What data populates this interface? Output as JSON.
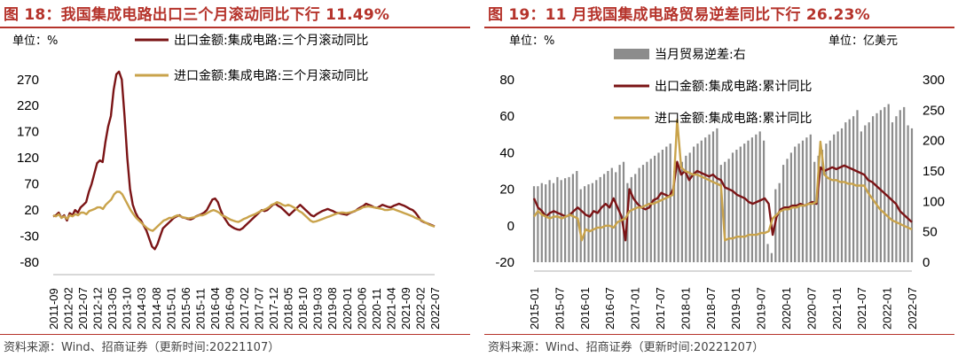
{
  "left": {
    "title": "图 18：我国集成电路出口三个月滚动同比下行 11.49%",
    "unit": "单位：%",
    "source": "资料来源：Wind、招商证券（更新时间:20221107）",
    "chart_data": {
      "type": "line",
      "x_ticks": [
        "2011-09",
        "2012-02",
        "2012-07",
        "2012-12",
        "2013-05",
        "2013-10",
        "2014-03",
        "2014-08",
        "2015-01",
        "2015-06",
        "2015-11",
        "2016-04",
        "2016-09",
        "2017-02",
        "2017-07",
        "2017-12",
        "2018-05",
        "2018-10",
        "2019-03",
        "2019-08",
        "2020-01",
        "2020-06",
        "2020-11",
        "2021-04",
        "2021-09",
        "2022-02",
        "2022-07"
      ],
      "ylim": [
        -80,
        290
      ],
      "y_ticks": [
        -80,
        -30,
        20,
        70,
        120,
        170,
        220,
        270
      ],
      "series": [
        {
          "name": "出口金额:集成电路:三个月滚动同比",
          "color": "#7b1416",
          "values": [
            8,
            10,
            15,
            5,
            10,
            0,
            14,
            10,
            20,
            15,
            25,
            30,
            35,
            55,
            70,
            90,
            110,
            115,
            112,
            150,
            180,
            200,
            250,
            280,
            285,
            270,
            200,
            120,
            60,
            30,
            15,
            5,
            0,
            -10,
            -20,
            -35,
            -50,
            -55,
            -45,
            -30,
            -15,
            -10,
            -5,
            0,
            5,
            8,
            10,
            6,
            5,
            3,
            2,
            4,
            8,
            10,
            12,
            15,
            20,
            30,
            40,
            42,
            35,
            20,
            8,
            0,
            -8,
            -12,
            -15,
            -17,
            -18,
            -15,
            -10,
            -5,
            0,
            5,
            10,
            15,
            20,
            18,
            20,
            25,
            30,
            32,
            28,
            25,
            20,
            15,
            10,
            15,
            20,
            25,
            30,
            25,
            20,
            15,
            10,
            8,
            12,
            15,
            18,
            20,
            22,
            20,
            18,
            15,
            14,
            13,
            12,
            11,
            14,
            16,
            18,
            22,
            25,
            28,
            32,
            30,
            28,
            25,
            24,
            27,
            30,
            28,
            26,
            25,
            28,
            30,
            32,
            30,
            28,
            25,
            22,
            20,
            15,
            8,
            0,
            -3,
            -5,
            -7,
            -9,
            -11.49
          ]
        },
        {
          "name": "进口金额:集成电路:三个月滚动同比",
          "color": "#c9a34b",
          "values": [
            10,
            8,
            12,
            5,
            8,
            3,
            10,
            8,
            12,
            10,
            15,
            15,
            12,
            18,
            20,
            22,
            25,
            25,
            22,
            30,
            35,
            40,
            50,
            55,
            55,
            50,
            40,
            30,
            20,
            12,
            5,
            0,
            -5,
            -10,
            -15,
            -18,
            -20,
            -15,
            -10,
            -5,
            0,
            2,
            5,
            5,
            8,
            10,
            8,
            6,
            5,
            4,
            5,
            6,
            8,
            10,
            10,
            12,
            15,
            18,
            20,
            18,
            15,
            10,
            8,
            5,
            2,
            0,
            -2,
            -3,
            0,
            3,
            5,
            8,
            10,
            12,
            15,
            18,
            20,
            22,
            25,
            30,
            32,
            35,
            33,
            30,
            28,
            30,
            28,
            25,
            22,
            18,
            15,
            10,
            5,
            0,
            -3,
            -2,
            0,
            2,
            4,
            6,
            8,
            10,
            12,
            14,
            15,
            15,
            14,
            15,
            16,
            18,
            20,
            22,
            25,
            26,
            27,
            26,
            25,
            24,
            23,
            22,
            20,
            20,
            21,
            22,
            20,
            18,
            16,
            14,
            12,
            10,
            8,
            5,
            3,
            1,
            -2,
            -5,
            -8,
            -10,
            -12
          ]
        }
      ]
    }
  },
  "right": {
    "title": "图 19：11 月我国集成电路贸易逆差同比下行 26.23%",
    "unit_left": "单位：%",
    "unit_right": "单位：亿美元",
    "source": "资料来源：Wind、招商证券（更新时间:20221207）",
    "chart_data": {
      "type": "bar+line",
      "x_ticks": [
        "2015-01",
        "2015-07",
        "2016-01",
        "2016-07",
        "2017-01",
        "2017-07",
        "2018-01",
        "2018-07",
        "2019-01",
        "2019-07",
        "2020-01",
        "2020-07",
        "2021-01",
        "2021-07",
        "2022-01",
        "2022-07"
      ],
      "ylim_left": [
        -20,
        80
      ],
      "y_ticks_left": [
        -20,
        0,
        20,
        40,
        60,
        80
      ],
      "ylim_right": [
        0,
        300
      ],
      "y_ticks_right": [
        0,
        50,
        100,
        150,
        200,
        250,
        300
      ],
      "bar_series": {
        "name": "当月贸易逆差:右",
        "color": "#8c8c8c",
        "values": [
          125,
          125,
          130,
          128,
          135,
          130,
          140,
          135,
          138,
          140,
          145,
          150,
          120,
          125,
          128,
          130,
          135,
          140,
          145,
          150,
          155,
          148,
          160,
          165,
          130,
          140,
          145,
          155,
          160,
          165,
          170,
          175,
          180,
          185,
          190,
          195,
          150,
          160,
          165,
          175,
          180,
          190,
          195,
          200,
          205,
          210,
          215,
          220,
          160,
          165,
          170,
          180,
          185,
          190,
          195,
          200,
          205,
          210,
          215,
          200,
          30,
          15,
          120,
          130,
          160,
          170,
          180,
          190,
          195,
          200,
          205,
          210,
          165,
          175,
          185,
          195,
          200,
          210,
          215,
          220,
          230,
          235,
          240,
          250,
          215,
          225,
          230,
          240,
          245,
          250,
          255,
          260,
          230,
          240,
          250,
          255,
          225,
          220
        ]
      },
      "series": [
        {
          "name": "出口金额:集成电路:累计同比",
          "color": "#7b1416",
          "values": [
            15,
            10,
            8,
            5,
            7,
            8,
            7,
            6,
            5,
            6,
            8,
            10,
            8,
            6,
            5,
            8,
            7,
            10,
            12,
            10,
            15,
            10,
            5,
            -8,
            20,
            15,
            12,
            10,
            9,
            10,
            14,
            15,
            18,
            17,
            16,
            20,
            35,
            28,
            30,
            25,
            28,
            30,
            29,
            28,
            27,
            28,
            26,
            25,
            21,
            20,
            19,
            17,
            16,
            15,
            13,
            12,
            13,
            14,
            15,
            12,
            -5,
            5,
            9,
            10,
            10,
            11,
            11,
            12,
            11,
            12,
            13,
            12,
            32,
            30,
            31,
            32,
            31,
            32,
            33,
            32,
            31,
            30,
            29,
            28,
            25,
            24,
            22,
            20,
            18,
            16,
            14,
            12,
            8,
            6,
            4,
            2
          ]
        },
        {
          "name": "进口金额:集成电路:累计同比",
          "color": "#c9a34b",
          "values": [
            5,
            8,
            6,
            5,
            4,
            5,
            5,
            4,
            5,
            6,
            5,
            4,
            -8,
            -2,
            -3,
            -2,
            -1,
            -1,
            0,
            0,
            -1,
            2,
            3,
            4,
            8,
            9,
            10,
            10,
            11,
            12,
            12,
            13,
            14,
            15,
            16,
            17,
            58,
            32,
            30,
            29,
            28,
            28,
            27,
            26,
            25,
            24,
            23,
            22,
            -8,
            -7,
            -7,
            -6,
            -6,
            -6,
            -5,
            -5,
            -5,
            -4,
            -4,
            -3,
            4,
            6,
            8,
            9,
            9,
            10,
            10,
            11,
            11,
            12,
            12,
            13,
            46,
            28,
            26,
            25,
            25,
            24,
            24,
            23,
            23,
            22,
            22,
            22,
            18,
            15,
            12,
            9,
            7,
            5,
            3,
            2,
            1,
            0,
            -1,
            -2
          ]
        }
      ]
    }
  }
}
